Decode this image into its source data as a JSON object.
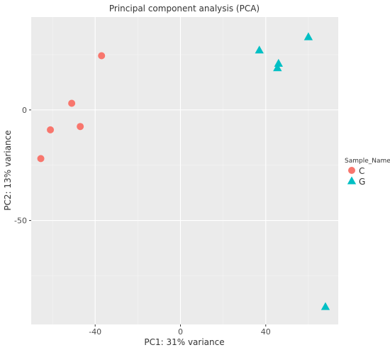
{
  "chart_data": {
    "type": "scatter",
    "title": "Principal component analysis (PCA)",
    "xlabel": "PC1: 31% variance",
    "ylabel": "PC2: 13% variance",
    "xlim": [
      -70,
      74
    ],
    "ylim": [
      -97,
      42
    ],
    "x_ticks": [
      -40,
      0,
      40
    ],
    "y_ticks": [
      0,
      -50
    ],
    "grid": true,
    "legend": {
      "title": "Sample_Name",
      "position": "right",
      "entries": [
        "C",
        "G"
      ]
    },
    "series": [
      {
        "name": "C",
        "shape": "circle",
        "color": "#F8766D",
        "points": [
          {
            "x": -37,
            "y": 24.5
          },
          {
            "x": -51,
            "y": 3
          },
          {
            "x": -61,
            "y": -9
          },
          {
            "x": -47,
            "y": -7.5
          },
          {
            "x": -65.5,
            "y": -22
          }
        ]
      },
      {
        "name": "G",
        "shape": "triangle",
        "color": "#00BFC4",
        "points": [
          {
            "x": 37,
            "y": 27
          },
          {
            "x": 46,
            "y": 21
          },
          {
            "x": 45.5,
            "y": 19
          },
          {
            "x": 60,
            "y": 33
          },
          {
            "x": 68,
            "y": -89
          }
        ]
      }
    ]
  },
  "colors": {
    "panel": "#EBEBEB",
    "grid_major": "#FFFFFF",
    "grid_minor": "#F5F5F5",
    "text": "#333333"
  }
}
